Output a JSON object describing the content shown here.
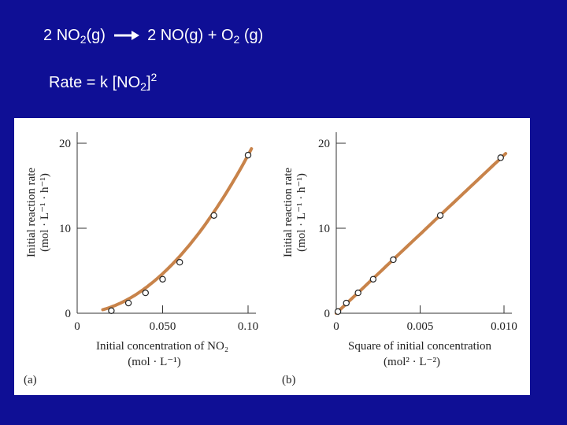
{
  "slide": {
    "equation": {
      "reactant_coef": "2",
      "reactant_species": "NO",
      "reactant_sub": "2",
      "reactant_state": "(g)",
      "product1": "2 NO(g) + O",
      "product1_sub": "2",
      "product1_state": " (g)"
    },
    "rate_law": {
      "prefix": "Rate = k [NO",
      "sub": "2",
      "close": "]",
      "exponent": "2"
    }
  },
  "colors": {
    "background": "#0f0f95",
    "curve": "#c8834a",
    "marker_fill": "#ffffff",
    "axis": "#333333"
  },
  "chart_data": [
    {
      "type": "line",
      "panel_label": "(a)",
      "ylabel_line1": "Initial reaction rate",
      "ylabel_line2": "(mol · L⁻¹ · h⁻¹)",
      "xlabel_line1": "Initial concentration of NO₂",
      "xlabel_line2": "(mol · L⁻¹)",
      "xlim": [
        0,
        0.1
      ],
      "ylim": [
        0,
        20
      ],
      "xticks": [
        {
          "value": 0,
          "label": "0"
        },
        {
          "value": 0.05,
          "label": "0.050"
        },
        {
          "value": 0.1,
          "label": "0.10"
        }
      ],
      "yticks": [
        {
          "value": 0,
          "label": "0"
        },
        {
          "value": 10,
          "label": "10"
        },
        {
          "value": 20,
          "label": "20"
        }
      ],
      "points": {
        "x": [
          0.02,
          0.03,
          0.04,
          0.05,
          0.06,
          0.08,
          0.1
        ],
        "y": [
          0.3,
          1.2,
          2.4,
          4.0,
          6.0,
          11.5,
          18.6
        ]
      },
      "curve": {
        "formula": "y = 1860·x²",
        "x_range": [
          0.015,
          0.102
        ]
      }
    },
    {
      "type": "line",
      "panel_label": "(b)",
      "ylabel_line1": "Initial reaction rate",
      "ylabel_line2": "(mol · L⁻¹ · h⁻¹)",
      "xlabel_line1": "Square of initial concentration",
      "xlabel_line2": "(mol² · L⁻²)",
      "xlim": [
        0,
        0.01
      ],
      "ylim": [
        0,
        20
      ],
      "xticks": [
        {
          "value": 0,
          "label": "0"
        },
        {
          "value": 0.005,
          "label": "0.005"
        },
        {
          "value": 0.01,
          "label": "0.010"
        }
      ],
      "yticks": [
        {
          "value": 0,
          "label": "0"
        },
        {
          "value": 10,
          "label": "10"
        },
        {
          "value": 20,
          "label": "20"
        }
      ],
      "points": {
        "x": [
          0.0001,
          0.0006,
          0.0013,
          0.0022,
          0.0034,
          0.0062,
          0.0098
        ],
        "y": [
          0.2,
          1.2,
          2.4,
          4.0,
          6.3,
          11.5,
          18.3
        ]
      },
      "curve": {
        "formula": "y = 1860·x",
        "x_range": [
          0,
          0.0101
        ]
      }
    }
  ]
}
